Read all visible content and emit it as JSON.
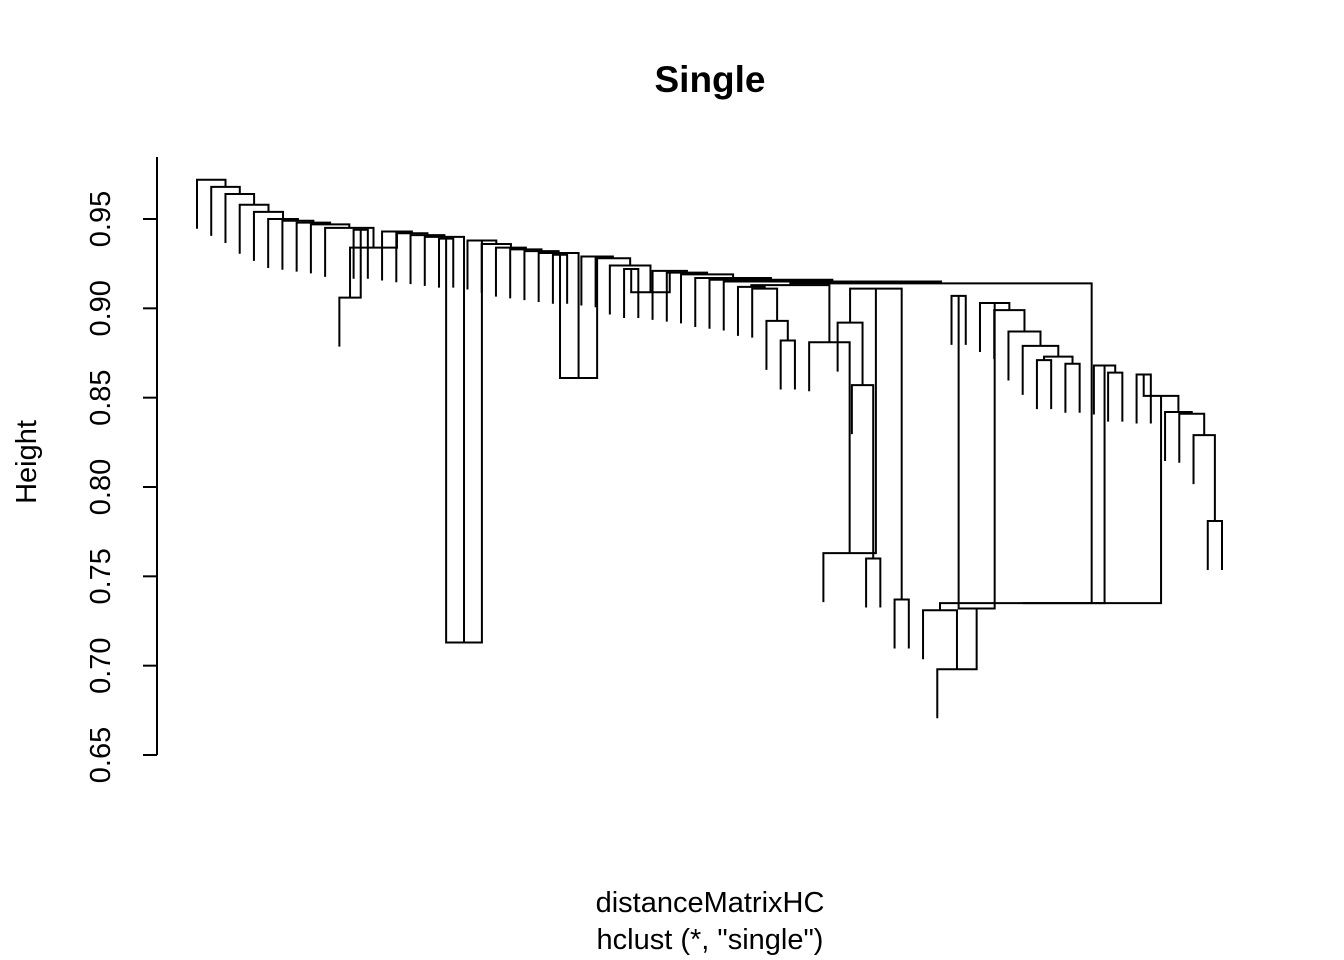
{
  "chart_data": {
    "type": "dendrogram",
    "title": "Single",
    "xlabel": "distanceMatrixHC",
    "sublabel": "hclust (*, \"single\")",
    "ylabel": "Height",
    "ylim": [
      0.65,
      0.97
    ],
    "yticks": [
      0.65,
      0.7,
      0.75,
      0.8,
      0.85,
      0.9,
      0.95
    ],
    "ytick_labels": [
      "0.65",
      "0.70",
      "0.75",
      "0.80",
      "0.85",
      "0.90",
      "0.95"
    ],
    "method": "single",
    "merge_heights": [
      0.972,
      0.968,
      0.964,
      0.958,
      0.954,
      0.95,
      0.949,
      0.948,
      0.947,
      0.945,
      0.934,
      0.906,
      0.944,
      0.943,
      0.942,
      0.941,
      0.94,
      0.713,
      0.939,
      0.938,
      0.936,
      0.934,
      0.933,
      0.932,
      0.931,
      0.861,
      0.93,
      0.929,
      0.928,
      0.924,
      0.909,
      0.922,
      0.921,
      0.92,
      0.919,
      0.917,
      0.916,
      0.915,
      0.914,
      0.913,
      0.912,
      0.911,
      0.893,
      0.882,
      0.881,
      0.763,
      0.911,
      0.892,
      0.857,
      0.76,
      0.737,
      0.735,
      0.731,
      0.698,
      0.732,
      0.907,
      0.903,
      0.899,
      0.887,
      0.879,
      0.873,
      0.871,
      0.869,
      0.868,
      0.864,
      0.851,
      0.863,
      0.842,
      0.841,
      0.829,
      0.781,
      0.908,
      0.906,
      0.902,
      0.897,
      0.896,
      0.889,
      0.886,
      0.879,
      0.871,
      0.846,
      0.836,
      0.733,
      0.891,
      0.89,
      0.88,
      0.873,
      0.854,
      0.853,
      0.827,
      0.799
    ]
  }
}
